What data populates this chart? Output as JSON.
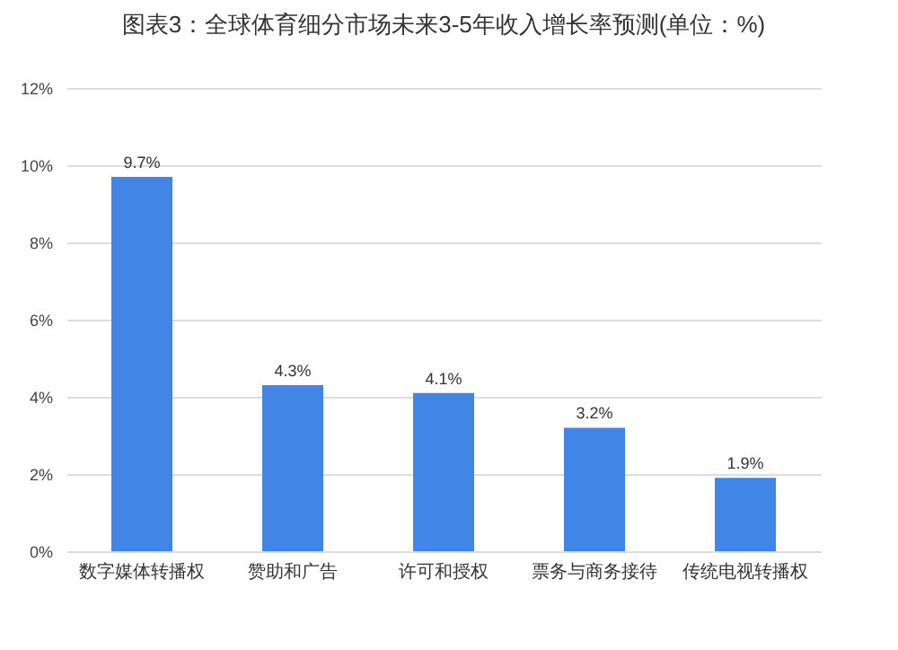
{
  "chart_data": {
    "type": "bar",
    "title": "图表3：全球体育细分市场未来3-5年收入增长率预测(单位：%)",
    "categories": [
      "数字媒体转播权",
      "赞助和广告",
      "许可和授权",
      "票务与商务接待",
      "传统电视转播权"
    ],
    "values": [
      9.7,
      4.3,
      4.1,
      3.2,
      1.9
    ],
    "value_labels": [
      "9.7%",
      "4.3%",
      "4.1%",
      "3.2%",
      "1.9%"
    ],
    "color": "#4185e6",
    "ylim": [
      0,
      12
    ],
    "yticks": [
      {
        "value": 0,
        "label": "0%"
      },
      {
        "value": 2,
        "label": "2%"
      },
      {
        "value": 4,
        "label": "4%"
      },
      {
        "value": 6,
        "label": "6%"
      },
      {
        "value": 8,
        "label": "8%"
      },
      {
        "value": 10,
        "label": "10%"
      },
      {
        "value": 12,
        "label": "12%"
      }
    ],
    "grid": "y"
  }
}
